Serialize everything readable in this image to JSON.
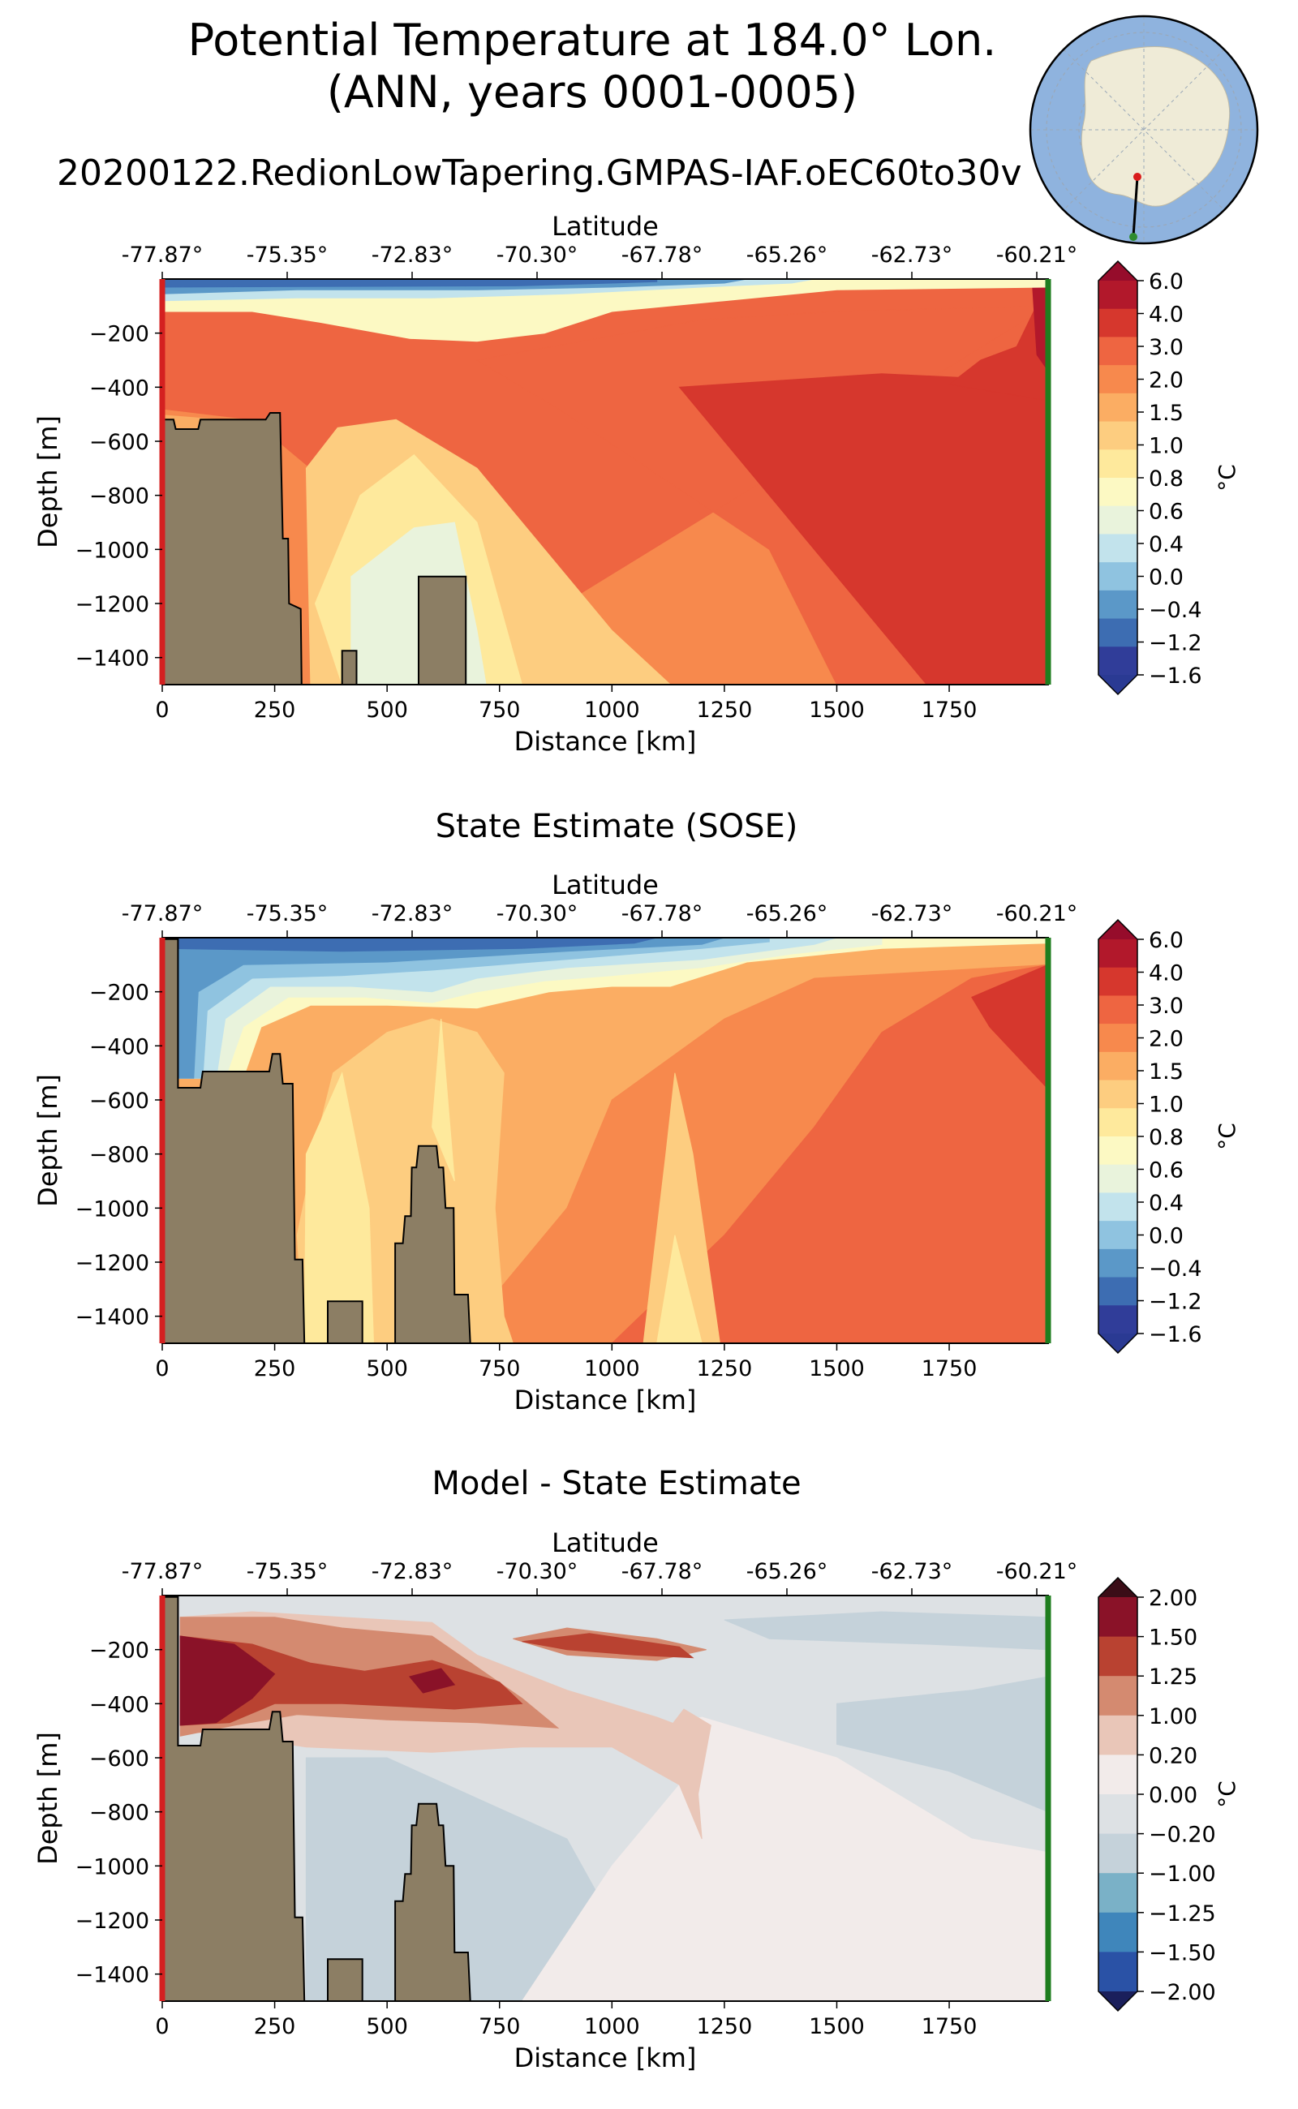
{
  "figure": {
    "title_line1": "Potential Temperature at 184.0° Lon.",
    "title_line2": "(ANN, years 0001-0005)",
    "subtitle": "20200122.RedionLowTapering.GMPAS-IAF.oEC60to30v"
  },
  "inset_map": {
    "description_icon": "antarctica-polar-map-icon",
    "colors": {
      "ocean": "#8fb3de",
      "land": "#efebd7",
      "start": "#d91c1c",
      "end": "#2e8b2e"
    }
  },
  "chart_data": [
    {
      "type": "heatmap",
      "title": "",
      "xlabel": "Distance [km]",
      "ylabel": "Depth [m]",
      "top_xlabel": "Latitude",
      "xlim": [
        0,
        1970
      ],
      "ylim": [
        -1500,
        0
      ],
      "xticks": [
        0,
        250,
        500,
        750,
        1000,
        1250,
        1500,
        1750
      ],
      "yticks": [
        -200,
        -400,
        -600,
        -800,
        -1000,
        -1200,
        -1400
      ],
      "lat_ticks": [
        "-77.87°",
        "-75.35°",
        "-72.83°",
        "-70.30°",
        "-67.78°",
        "-65.26°",
        "-62.73°",
        "-60.21°"
      ],
      "colorbar_label": "°C",
      "colorbar_ticks": [
        "6.0",
        "4.0",
        "3.0",
        "2.0",
        "1.5",
        "1.0",
        "0.8",
        "0.6",
        "0.4",
        "0.0",
        "−0.4",
        "−1.2",
        "−1.6"
      ],
      "colorbar_colors": [
        "#b2182b",
        "#d6372d",
        "#ee6541",
        "#f7894d",
        "#fbad63",
        "#fdcd80",
        "#fee99c",
        "#fcf9c3",
        "#e9f3dc",
        "#c2e3ec",
        "#8fc3e0",
        "#5b98c8",
        "#3d6db2",
        "#303d99"
      ]
    },
    {
      "type": "heatmap",
      "title": "State Estimate (SOSE)",
      "xlabel": "Distance [km]",
      "ylabel": "Depth [m]",
      "top_xlabel": "Latitude",
      "xlim": [
        0,
        1970
      ],
      "ylim": [
        -1500,
        0
      ],
      "xticks": [
        0,
        250,
        500,
        750,
        1000,
        1250,
        1500,
        1750
      ],
      "yticks": [
        -200,
        -400,
        -600,
        -800,
        -1000,
        -1200,
        -1400
      ],
      "lat_ticks": [
        "-77.87°",
        "-75.35°",
        "-72.83°",
        "-70.30°",
        "-67.78°",
        "-65.26°",
        "-62.73°",
        "-60.21°"
      ],
      "colorbar_label": "°C",
      "colorbar_ticks": [
        "6.0",
        "4.0",
        "3.0",
        "2.0",
        "1.5",
        "1.0",
        "0.8",
        "0.6",
        "0.4",
        "0.0",
        "−0.4",
        "−1.2",
        "−1.6"
      ],
      "colorbar_colors": [
        "#b2182b",
        "#d6372d",
        "#ee6541",
        "#f7894d",
        "#fbad63",
        "#fdcd80",
        "#fee99c",
        "#fcf9c3",
        "#e9f3dc",
        "#c2e3ec",
        "#8fc3e0",
        "#5b98c8",
        "#3d6db2",
        "#303d99"
      ]
    },
    {
      "type": "heatmap",
      "title": "Model - State Estimate",
      "xlabel": "Distance [km]",
      "ylabel": "Depth [m]",
      "top_xlabel": "Latitude",
      "xlim": [
        0,
        1970
      ],
      "ylim": [
        -1500,
        0
      ],
      "xticks": [
        0,
        250,
        500,
        750,
        1000,
        1250,
        1500,
        1750
      ],
      "yticks": [
        -200,
        -400,
        -600,
        -800,
        -1000,
        -1200,
        -1400
      ],
      "lat_ticks": [
        "-77.87°",
        "-75.35°",
        "-72.83°",
        "-70.30°",
        "-67.78°",
        "-65.26°",
        "-62.73°",
        "-60.21°"
      ],
      "colorbar_label": "°C",
      "colorbar_ticks": [
        "2.00",
        "1.50",
        "1.25",
        "1.00",
        "0.20",
        "0.00",
        "−0.20",
        "−1.00",
        "−1.25",
        "−1.50",
        "−2.00"
      ],
      "colorbar_colors": [
        "#8a1228",
        "#b94231",
        "#d48a70",
        "#e9c6b8",
        "#f2ebea",
        "#dde1e4",
        "#c5d2da",
        "#7ab1c7",
        "#3f86bb",
        "#2a52a6"
      ]
    }
  ]
}
